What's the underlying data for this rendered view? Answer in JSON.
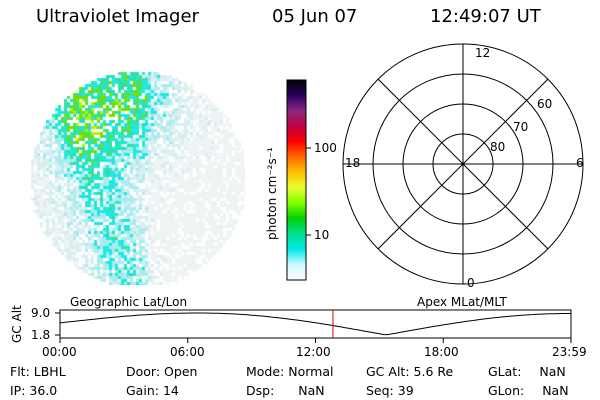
{
  "header": {
    "title": "Ultraviolet Imager",
    "date": "05 Jun 07",
    "time": "12:49:07 UT"
  },
  "colorbar": {
    "unit_label": "photon cm⁻²s⁻¹",
    "ticks": [
      "100",
      "10"
    ],
    "colors": [
      "#000000",
      "#2a0060",
      "#8a2a80",
      "#c00040",
      "#ff0000",
      "#ff6a00",
      "#ffc000",
      "#e8ff30",
      "#80ff00",
      "#00d000",
      "#00e090",
      "#00e8e8",
      "#d0f8ff",
      "#ffffff"
    ]
  },
  "polar": {
    "mlt_labels": {
      "top": "12",
      "left": "18",
      "right": "6",
      "bottom": "0"
    },
    "lat_labels": [
      "60",
      "70",
      "80"
    ]
  },
  "timeline": {
    "left_title": "Geographic Lat/Lon",
    "right_title": "Apex MLat/MLT",
    "y_label": "GC Alt",
    "y_ticks": [
      "9.0",
      "1.8"
    ],
    "x_ticks": [
      "00:00",
      "06:00",
      "12:00",
      "18:00",
      "23:59"
    ],
    "current_time_hours": 12.82,
    "cursor_color": "#dd0000"
  },
  "status": {
    "flt_label": "Flt:",
    "flt_value": "LBHL",
    "ip_label": "IP:",
    "ip_value": "36.0",
    "door_label": "Door:",
    "door_value": "Open",
    "gain_label": "Gain:",
    "gain_value": "14",
    "mode_label": "Mode:",
    "mode_value": "Normal",
    "dsp_label": "Dsp:",
    "dsp_value": "NaN",
    "gcalt_label": "GC Alt:",
    "gcalt_value": "5.6 Re",
    "seq_label": "Seq:",
    "seq_value": "39",
    "glat_label": "GLat:",
    "glat_value": "NaN",
    "glon_label": "GLon:",
    "glon_value": "NaN"
  }
}
